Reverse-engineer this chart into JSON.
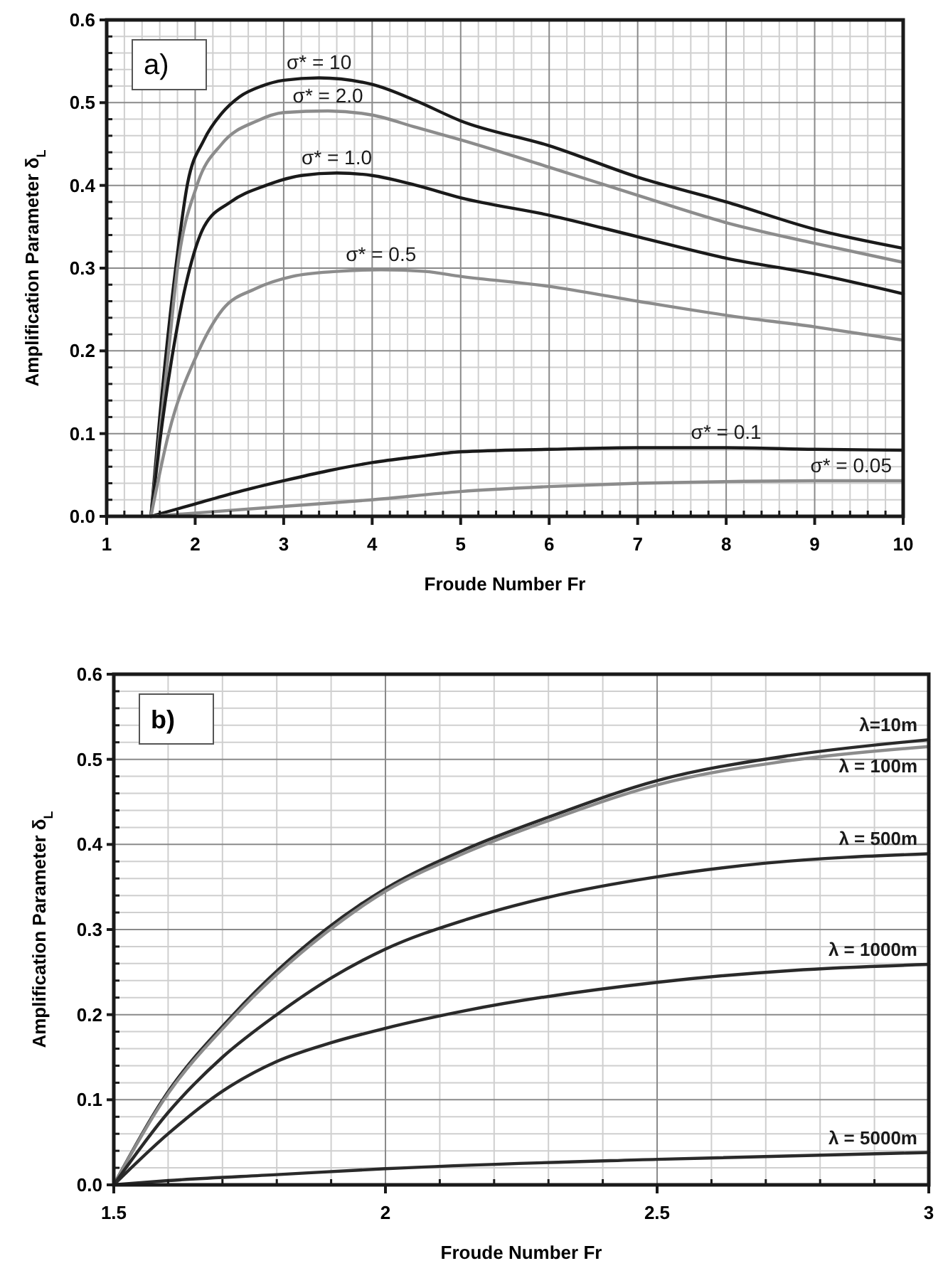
{
  "chart_data": [
    {
      "type": "line",
      "xlabel": "Froude Number Fr",
      "ylabel": "Amplification Parameter  δ$_{L}$",
      "xlim": [
        1,
        10
      ],
      "ylim": [
        0,
        0.6
      ],
      "xticks": [
        1,
        2,
        3,
        4,
        5,
        6,
        7,
        8,
        9,
        10
      ],
      "yticks": [
        {
          "value": 0,
          "label": "0.0"
        },
        0.1,
        0.2,
        0.3,
        0.4,
        0.5,
        0.6
      ],
      "grid": true,
      "annotations": [
        "a)"
      ],
      "series": [
        {
          "name": "σ* = 10",
          "color": "#1a1a1a",
          "x": [
            1.5,
            1.6,
            1.78,
            1.91,
            2.1,
            2.3,
            2.5,
            2.75,
            3.0,
            3.4,
            4.0,
            4.5,
            5.0,
            6.0,
            7.0,
            8.0,
            9.0,
            10.0
          ],
          "values": [
            0,
            0.12,
            0.3,
            0.4,
            0.455,
            0.487,
            0.507,
            0.52,
            0.527,
            0.53,
            0.522,
            0.502,
            0.478,
            0.448,
            0.41,
            0.38,
            0.347,
            0.324
          ]
        },
        {
          "name": "σ* = 2.0",
          "color": "#8c8c8c",
          "x": [
            1.5,
            1.6,
            1.7,
            1.8,
            2.02,
            2.3,
            2.7,
            3.0,
            3.5,
            4.0,
            4.5,
            5.0,
            6.0,
            7.0,
            8.0,
            9.0,
            10.0
          ],
          "values": [
            0,
            0.1,
            0.2,
            0.3,
            0.4,
            0.45,
            0.478,
            0.488,
            0.49,
            0.485,
            0.47,
            0.455,
            0.422,
            0.388,
            0.355,
            0.33,
            0.307
          ]
        },
        {
          "name": "σ* = 1.0",
          "color": "#1a1a1a",
          "x": [
            1.5,
            1.6,
            1.75,
            1.94,
            2.1,
            2.4,
            2.8,
            3.2,
            3.6,
            4.0,
            4.5,
            5.0,
            6.0,
            7.0,
            8.0,
            9.0,
            10.0
          ],
          "values": [
            0,
            0.09,
            0.2,
            0.3,
            0.35,
            0.38,
            0.4,
            0.412,
            0.415,
            0.412,
            0.4,
            0.385,
            0.364,
            0.338,
            0.312,
            0.293,
            0.269
          ]
        },
        {
          "name": "σ* = 0.5",
          "color": "#8c8c8c",
          "x": [
            1.5,
            1.7,
            2.04,
            2.31,
            2.68,
            3.1,
            3.6,
            4.1,
            4.6,
            5.0,
            6.0,
            7.0,
            8.0,
            9.0,
            10.0
          ],
          "values": [
            0,
            0.1,
            0.2,
            0.25,
            0.275,
            0.29,
            0.296,
            0.298,
            0.296,
            0.29,
            0.278,
            0.26,
            0.243,
            0.229,
            0.213
          ]
        },
        {
          "name": "σ* = 0.1",
          "color": "#1a1a1a",
          "x": [
            1.5,
            2.0,
            2.5,
            3.0,
            3.5,
            4.0,
            4.5,
            5.0,
            6.0,
            7.0,
            8.0,
            9.0,
            10.0
          ],
          "values": [
            0,
            0.015,
            0.03,
            0.043,
            0.055,
            0.065,
            0.072,
            0.078,
            0.081,
            0.083,
            0.083,
            0.081,
            0.08
          ]
        },
        {
          "name": "σ* = 0.05",
          "color": "#8c8c8c",
          "x": [
            1.5,
            2.0,
            3.0,
            4.0,
            5.0,
            6.0,
            7.0,
            8.0,
            9.0,
            10.0
          ],
          "values": [
            0,
            0.004,
            0.012,
            0.02,
            0.03,
            0.036,
            0.04,
            0.042,
            0.043,
            0.043
          ]
        }
      ]
    },
    {
      "type": "line",
      "xlabel": "Froude Number Fr",
      "ylabel": "Amplification Parameter  δ$_{L}$",
      "xlim": [
        1.5,
        3
      ],
      "ylim": [
        0,
        0.6
      ],
      "xticks": [
        1.5,
        2,
        2.5,
        3
      ],
      "yticks": [
        {
          "value": 0,
          "label": "0.0"
        },
        0.1,
        0.2,
        0.3,
        0.4,
        0.5,
        0.6
      ],
      "grid": true,
      "annotations": [
        "b)"
      ],
      "series": [
        {
          "name": "λ=10m",
          "color": "#2a2a2a",
          "x": [
            1.5,
            1.59,
            1.72,
            1.89,
            2.0,
            2.15,
            2.3,
            2.5,
            2.75,
            3.0
          ],
          "values": [
            0,
            0.1,
            0.2,
            0.3,
            0.348,
            0.395,
            0.432,
            0.475,
            0.505,
            0.523
          ]
        },
        {
          "name": "λ = 100m",
          "color": "#8c8c8c",
          "x": [
            1.5,
            1.59,
            1.72,
            1.89,
            2.0,
            2.15,
            2.3,
            2.5,
            2.75,
            3.0
          ],
          "values": [
            0,
            0.098,
            0.197,
            0.296,
            0.345,
            0.391,
            0.428,
            0.47,
            0.499,
            0.515
          ]
        },
        {
          "name": "λ = 500m",
          "color": "#2a2a2a",
          "x": [
            1.5,
            1.6,
            1.7,
            1.8,
            1.9,
            2.0,
            2.15,
            2.3,
            2.5,
            2.7,
            3.0
          ],
          "values": [
            0,
            0.085,
            0.15,
            0.2,
            0.243,
            0.277,
            0.312,
            0.338,
            0.362,
            0.378,
            0.389
          ]
        },
        {
          "name": "λ = 1000m",
          "color": "#2a2a2a",
          "x": [
            1.5,
            1.6,
            1.7,
            1.8,
            1.9,
            2.0,
            2.15,
            2.5,
            2.75,
            3.0
          ],
          "values": [
            0,
            0.06,
            0.11,
            0.145,
            0.167,
            0.184,
            0.205,
            0.238,
            0.252,
            0.259
          ]
        },
        {
          "name": "λ = 5000m",
          "color": "#2a2a2a",
          "x": [
            1.5,
            1.6,
            1.8,
            2.0,
            2.5,
            3.0
          ],
          "values": [
            0,
            0.005,
            0.012,
            0.019,
            0.03,
            0.038
          ]
        }
      ]
    }
  ]
}
